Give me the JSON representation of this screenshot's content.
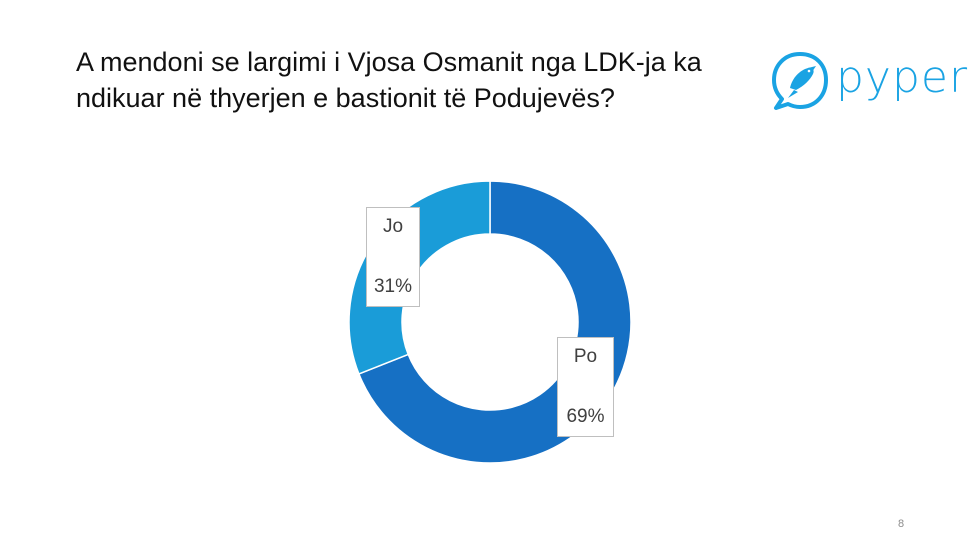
{
  "slide": {
    "title": "A mendoni se largimi i Vjosa Osmanit nga LDK-ja ka ndikuar në thyerjen e bastionit të Podujevës?",
    "page_number": "8"
  },
  "logo": {
    "text": "pyper",
    "icon": "bird-icon",
    "color": "#1aa3e3"
  },
  "chart_data": {
    "type": "pie",
    "variant": "donut",
    "categories": [
      "Po",
      "Jo"
    ],
    "values": [
      69,
      31
    ],
    "value_labels": [
      "69%",
      "31%"
    ],
    "colors": [
      "#1670c4",
      "#1a9cd8"
    ]
  }
}
